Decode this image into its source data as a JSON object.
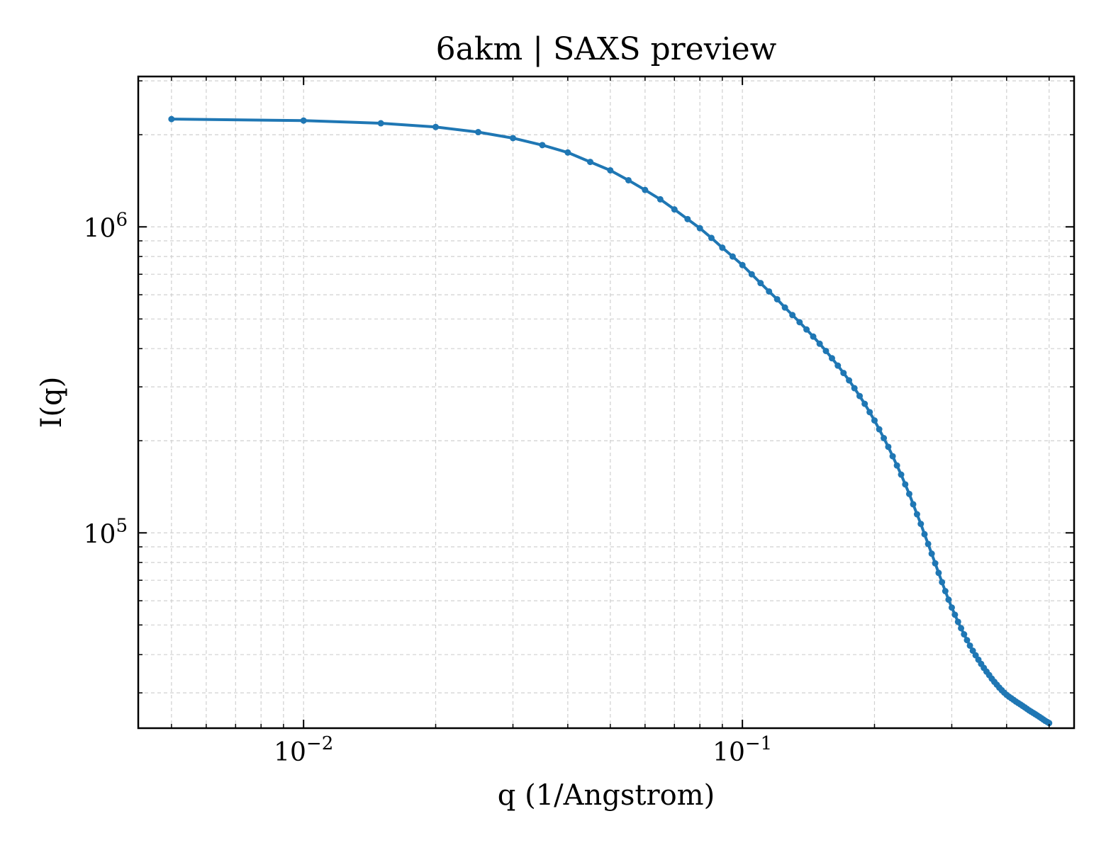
{
  "chart_data": {
    "type": "line",
    "title": "6akm | SAXS preview",
    "xlabel": "q (1/Angstrom)",
    "ylabel": "I(q)",
    "xscale": "log",
    "yscale": "log",
    "xlim": [
      0.0042,
      0.57
    ],
    "ylim": [
      23000,
      3100000
    ],
    "grid": true,
    "x_major_ticks": [
      {
        "value": 0.01,
        "base": "10",
        "exp": "−2"
      },
      {
        "value": 0.1,
        "base": "10",
        "exp": "−1"
      }
    ],
    "y_major_ticks": [
      {
        "value": 100000,
        "base": "10",
        "exp": "5"
      },
      {
        "value": 1000000,
        "base": "10",
        "exp": "6"
      }
    ],
    "series": [
      {
        "color": "#1f77b4",
        "marker": "circle",
        "points": [
          [
            0.005,
            2250000
          ],
          [
            0.01,
            2225000
          ],
          [
            0.015,
            2180000
          ],
          [
            0.02,
            2120000
          ],
          [
            0.025,
            2040000
          ],
          [
            0.03,
            1950000
          ],
          [
            0.035,
            1850000
          ],
          [
            0.04,
            1750000
          ],
          [
            0.045,
            1630000
          ],
          [
            0.05,
            1530000
          ],
          [
            0.055,
            1420000
          ],
          [
            0.06,
            1320000
          ],
          [
            0.065,
            1230000
          ],
          [
            0.07,
            1140000
          ],
          [
            0.075,
            1060000
          ],
          [
            0.08,
            990000
          ],
          [
            0.085,
            920000
          ],
          [
            0.09,
            855000
          ],
          [
            0.095,
            800000
          ],
          [
            0.1,
            750000
          ],
          [
            0.105,
            700000
          ],
          [
            0.11,
            655000
          ],
          [
            0.115,
            615000
          ],
          [
            0.12,
            580000
          ],
          [
            0.125,
            545000
          ],
          [
            0.13,
            515000
          ],
          [
            0.135,
            488000
          ],
          [
            0.14,
            462000
          ],
          [
            0.145,
            438000
          ],
          [
            0.15,
            415000
          ],
          [
            0.155,
            393000
          ],
          [
            0.16,
            372000
          ],
          [
            0.165,
            352000
          ],
          [
            0.17,
            333000
          ],
          [
            0.175,
            315000
          ],
          [
            0.18,
            297000
          ],
          [
            0.185,
            280000
          ],
          [
            0.19,
            264000
          ],
          [
            0.195,
            248000
          ],
          [
            0.2,
            233000
          ],
          [
            0.205,
            218000
          ],
          [
            0.21,
            204000
          ],
          [
            0.215,
            191000
          ],
          [
            0.22,
            178000
          ],
          [
            0.225,
            166000
          ],
          [
            0.23,
            155000
          ],
          [
            0.235,
            144000
          ],
          [
            0.24,
            134000
          ],
          [
            0.245,
            124000
          ],
          [
            0.25,
            115000
          ],
          [
            0.255,
            107000
          ],
          [
            0.26,
            99000
          ],
          [
            0.265,
            92000
          ],
          [
            0.27,
            85500
          ],
          [
            0.275,
            79500
          ],
          [
            0.28,
            74000
          ],
          [
            0.285,
            69000
          ],
          [
            0.29,
            64500
          ],
          [
            0.295,
            60500
          ],
          [
            0.3,
            57000
          ],
          [
            0.305,
            54000
          ],
          [
            0.31,
            51200
          ],
          [
            0.315,
            48800
          ],
          [
            0.32,
            46600
          ],
          [
            0.325,
            44600
          ],
          [
            0.33,
            42800
          ],
          [
            0.335,
            41200
          ],
          [
            0.34,
            39800
          ],
          [
            0.345,
            38500
          ],
          [
            0.35,
            37300
          ],
          [
            0.355,
            36200
          ],
          [
            0.36,
            35200
          ],
          [
            0.365,
            34300
          ],
          [
            0.37,
            33400
          ],
          [
            0.375,
            32600
          ],
          [
            0.38,
            31900
          ],
          [
            0.385,
            31200
          ],
          [
            0.39,
            30600
          ],
          [
            0.395,
            30050
          ],
          [
            0.4,
            29550
          ],
          [
            0.405,
            29150
          ],
          [
            0.41,
            28800
          ],
          [
            0.415,
            28450
          ],
          [
            0.42,
            28100
          ],
          [
            0.425,
            27800
          ],
          [
            0.43,
            27500
          ],
          [
            0.435,
            27200
          ],
          [
            0.44,
            26900
          ],
          [
            0.445,
            26600
          ],
          [
            0.45,
            26300
          ],
          [
            0.455,
            26050
          ],
          [
            0.46,
            25800
          ],
          [
            0.465,
            25550
          ],
          [
            0.47,
            25300
          ],
          [
            0.475,
            25050
          ],
          [
            0.48,
            24800
          ],
          [
            0.485,
            24550
          ],
          [
            0.49,
            24300
          ],
          [
            0.495,
            24100
          ],
          [
            0.5,
            23900
          ]
        ]
      }
    ]
  }
}
